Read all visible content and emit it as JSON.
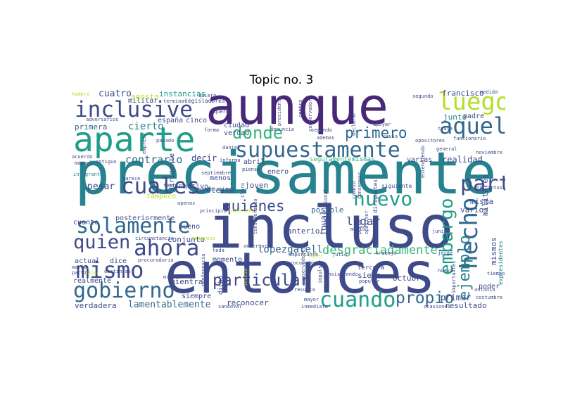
{
  "title": "Topic no. 3",
  "palette": {
    "dark_purple": "#482878",
    "indigo": "#3e4a89",
    "blue": "#31688e",
    "teal": "#26828e",
    "green_teal": "#1f9e89",
    "green": "#35b779",
    "lime": "#6ece58",
    "yellow_green": "#b5de2b",
    "deep": "#440154"
  },
  "words": {
    "precisamente": "precisamente",
    "incluso": "incluso",
    "entonces": "entonces",
    "aunque": "aunque",
    "aparte": "aparte",
    "supuestamente": "supuestamente",
    "inclusive": "inclusive",
    "luego": "luego",
    "aquel": "aquel",
    "cuales": "cuales",
    "solamente": "solamente",
    "ahora": "ahora",
    "quien": "quien",
    "mismo": "mismo",
    "gobierno": "gobierno",
    "cuando": "cuando",
    "particular": "particular",
    "propio": "propio",
    "nuevo": "nuevo",
    "hecho": "hecho",
    "embargo": "embargo",
    "ejemplo": "ejemplo",
    "parte": "parte",
    "donde": "donde",
    "primero": "primero",
    "quienes": "quienes",
    "desgraciadamente": "desgraciadamente",
    "lopezgatell": "lopezgatell",
    "lugar": "lugar",
    "contrario": "contrario",
    "cierto": "cierto",
    "primera": "primera",
    "cuatro": "cuatro",
    "instancias": "instancias",
    "francisco": "francisco",
    "junto": "junto",
    "padre": "padre",
    "realidad": "realidad",
    "pesar": "pesar",
    "decir": "decir",
    "lamentablemente": "lamentablemente",
    "verdadera": "verdadera",
    "siempre": "siempre",
    "momento": "momento",
    "reconocer": "reconocer",
    "octubre": "octubre",
    "resultado": "resultado",
    "primer": "primer",
    "misma": "misma",
    "varios": "varios",
    "militares": "militares",
    "mismos": "mismos",
    "igual": "igual",
    "anterior": "anterior",
    "posible": "posible",
    "siete": "siete",
    "tercera": "tercera",
    "poder": "poder",
    "mientras": "mientras",
    "realmente": "realmente",
    "actual": "actual",
    "dice": "dice",
    "posteriormente": "posteriormente",
    "bueno": "bueno",
    "conjunto": "conjunto",
    "cuanto": "cuanto",
    "militar": "militar",
    "agosto": "agosto",
    "espana": "españa",
    "cinco": "cinco",
    "ciudad": "ciudad",
    "verdad": "verdad",
    "protesta": "protesta",
    "motivo": "motivo",
    "menos": "menos",
    "abril": "abril",
    "enero": "enero",
    "joven": "joven",
    "seguramente": "seguramente",
    "mismas": "mismas",
    "varias": "varias",
    "siguiente": "siguiente",
    "legisladores": "legisladores",
    "terminar": "terminar",
    "adversarios": "adversarios",
    "integrante": "integrante",
    "dirigente": "dirigente",
    "tampoco": "tampoco",
    "parece": "parece",
    "septiembre": "septiembre",
    "febrero": "febrero",
    "iniciativa": "iniciativa",
    "mostrar": "mostrar",
    "apenas": "apenas",
    "principio": "principio",
    "intervenir": "intervenir",
    "junio": "junio",
    "medio": "medio",
    "julio": "julio",
    "trabajo": "trabajo",
    "pocos": "pocos",
    "opositor": "opositor",
    "considerando": "considerando",
    "conservadores": "conservadores",
    "importante": "importante",
    "procurador": "procurador",
    "saber": "saber",
    "resulta": "resulta",
    "insistiendo": "insistiendo",
    "popular": "popular",
    "mayor": "mayor",
    "inmediato": "inmediato",
    "sandoval": "sandoval",
    "circunstancia": "circunstancia",
    "congreso": "congreso",
    "procuraduria": "procuraduria",
    "distintas": "distintas",
    "miguel": "miguel",
    "preferencia": "preferencia",
    "dicho": "dicho",
    "hacer": "hacer",
    "marco": "marco",
    "partir": "partir",
    "hombre": "hombre",
    "acuerdo": "acuerdo",
    "manuel": "manuel",
    "antiguo": "antiguo",
    "pasado": "pasado",
    "empresa": "empresa",
    "forma": "forma",
    "daniel": "daniel",
    "informa": "informa",
    "piensa": "piensa",
    "claro": "claro",
    "denuncia": "denuncia",
    "segunda": "segunda",
    "centro": "centro",
    "conservador": "conservador",
    "ademas": "ademas",
    "opositores": "opositores",
    "apoyar": "apoyar",
    "causa": "causa",
    "declarar": "declarar",
    "presidente": "presidente",
    "trata": "trata",
    "segundo": "segundo",
    "medida": "medida",
    "general": "general",
    "funcionario": "funcionario",
    "noviembre": "noviembre",
    "distintos": "distintos",
    "costumbre": "costumbre",
    "antonio": "antonio",
    "tiempo": "tiempo",
    "expresidentes": "expresidentes",
    "importantes": "importantes",
    "ocasiones": "ocasiones",
    "nueva": "nueva",
    "jorge": "jorge",
    "cambio": "cambio",
    "conseguir": "conseguir",
    "dirigentes": "dirigentes",
    "institucional": "institucional",
    "entendiendo": "entendiendo",
    "quiero": "quiero",
    "querer": "querer",
    "nuevo_small": "nuevo",
    "anteriores": "anteriores",
    "toda": "toda",
    "inicio": "inicio",
    "impulsar": "impulsar"
  }
}
